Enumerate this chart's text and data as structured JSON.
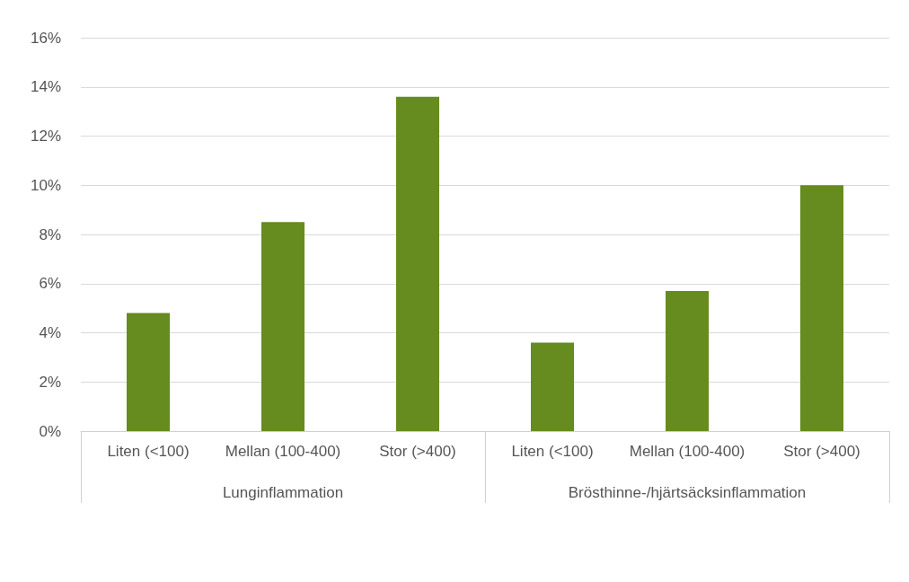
{
  "chart_data": {
    "type": "bar",
    "categories": [
      "Liten (<100)",
      "Mellan (100-400)",
      "Stor (>400)",
      "Liten (<100)",
      "Mellan (100-400)",
      "Stor (>400)"
    ],
    "values": [
      4.8,
      8.5,
      13.6,
      3.6,
      5.7,
      10.0
    ],
    "color": "#668b1e",
    "ylim": [
      0,
      16
    ],
    "yticks": [
      {
        "value": 0,
        "label": "0%"
      },
      {
        "value": 2,
        "label": "2%"
      },
      {
        "value": 4,
        "label": "4%"
      },
      {
        "value": 6,
        "label": "6%"
      },
      {
        "value": 8,
        "label": "8%"
      },
      {
        "value": 10,
        "label": "10%"
      },
      {
        "value": 12,
        "label": "12%"
      },
      {
        "value": 14,
        "label": "14%"
      },
      {
        "value": 16,
        "label": "16%"
      }
    ],
    "grid": "y",
    "annotations": [
      "Lunginflammation",
      "Brösthinne-/hjärtsäcksinflammation"
    ]
  }
}
